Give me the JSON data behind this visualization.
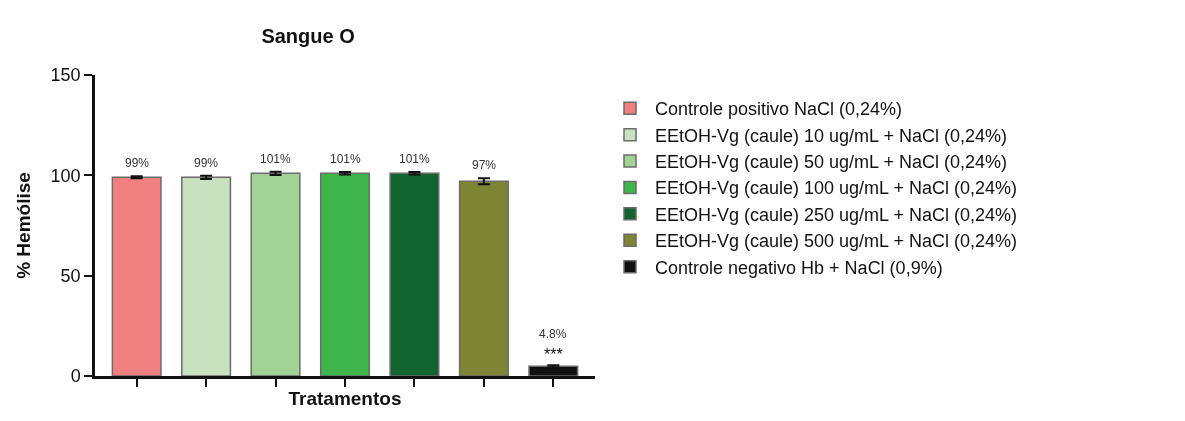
{
  "chart_data": {
    "type": "bar",
    "title": "Sangue O",
    "xlabel": "Tratamentos",
    "ylabel": "% Hemólise",
    "categories": [
      null,
      null,
      null,
      null,
      null,
      null,
      null
    ],
    "series": [
      {
        "name": "Controle positivo NaCl (0,24%)",
        "color": "#f08080",
        "values": [
          99,
          null,
          null,
          null,
          null,
          null,
          null
        ],
        "errors": [
          0.5,
          null,
          null,
          null,
          null,
          null,
          null
        ],
        "value_labels": [
          "99%",
          null,
          null,
          null,
          null,
          null,
          null
        ]
      },
      {
        "name": "EEtOH-Vg (caule) 10 ug/mL + NaCl (0,24%)",
        "color": "#c8e2c0",
        "values": [
          null,
          99,
          null,
          null,
          null,
          null,
          null
        ],
        "errors": [
          null,
          0.8,
          null,
          null,
          null,
          null,
          null
        ],
        "value_labels": [
          null,
          "99%",
          null,
          null,
          null,
          null,
          null
        ]
      },
      {
        "name": "EEtOH-Vg (caule) 50 ug/mL + NaCl (0,24%)",
        "color": "#a2d295",
        "values": [
          null,
          null,
          101,
          null,
          null,
          null,
          null
        ],
        "errors": [
          null,
          null,
          0.8,
          null,
          null,
          null,
          null
        ],
        "value_labels": [
          null,
          null,
          "101%",
          null,
          null,
          null,
          null
        ]
      },
      {
        "name": "EEtOH-Vg (caule) 100 ug/mL + NaCl (0,24%)",
        "color": "#3db54a",
        "values": [
          null,
          null,
          null,
          101,
          null,
          null,
          null
        ],
        "errors": [
          null,
          null,
          null,
          0.6,
          null,
          null,
          null
        ],
        "value_labels": [
          null,
          null,
          null,
          "101%",
          null,
          null,
          null
        ]
      },
      {
        "name": "EEtOH-Vg (caule) 250 ug/mL + NaCl (0,24%)",
        "color": "#13652f",
        "values": [
          null,
          null,
          null,
          null,
          101,
          null,
          null
        ],
        "errors": [
          null,
          null,
          null,
          null,
          0.6,
          null,
          null
        ],
        "value_labels": [
          null,
          null,
          null,
          null,
          "101%",
          null,
          null
        ]
      },
      {
        "name": "EEtOH-Vg (caule) 500 ug/mL + NaCl (0,24%)",
        "color": "#7d8535",
        "values": [
          null,
          null,
          null,
          null,
          null,
          97,
          null
        ],
        "errors": [
          null,
          null,
          null,
          null,
          null,
          1.5,
          null
        ],
        "value_labels": [
          null,
          null,
          null,
          null,
          null,
          "97%",
          null
        ]
      },
      {
        "name": "Controle negativo Hb + NaCl (0,9%)",
        "color": "#111111",
        "values": [
          null,
          null,
          null,
          null,
          null,
          null,
          4.8
        ],
        "errors": [
          null,
          null,
          null,
          null,
          null,
          null,
          0.6
        ],
        "value_labels": [
          null,
          null,
          null,
          null,
          null,
          null,
          "4.8%"
        ]
      }
    ],
    "annotations": [
      "***"
    ],
    "ylim": [
      0,
      150
    ],
    "yticks": [
      0,
      50,
      100,
      150
    ],
    "legend": "right"
  }
}
